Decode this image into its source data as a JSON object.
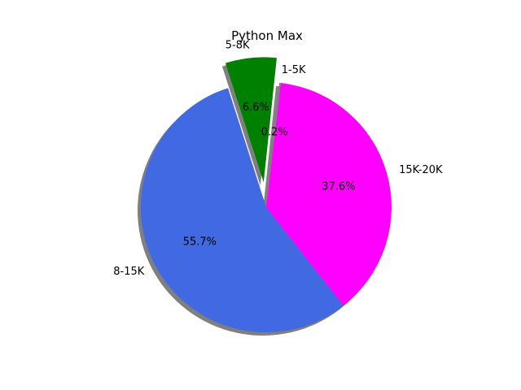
{
  "chart_data": {
    "type": "pie",
    "title": "Python Max",
    "shadow": true,
    "start_angle_deg": 84,
    "direction": "counterclockwise",
    "slices": [
      {
        "label": "5-8K",
        "percent": 6.6,
        "value": 6.6,
        "color": "#008000",
        "explode": 0.2,
        "pct_text": "6.6%"
      },
      {
        "label": "8-15K",
        "percent": 55.7,
        "value": 55.7,
        "color": "#4169e1",
        "explode": 0,
        "pct_text": "55.7%"
      },
      {
        "label": "15K-20K",
        "percent": 37.6,
        "value": 37.6,
        "color": "#ff00ff",
        "explode": 0,
        "pct_text": "37.6%"
      },
      {
        "label": "1-5K",
        "percent": 0.2,
        "value": 0.2,
        "color": "#808080",
        "explode": 0,
        "pct_text": "0.2%"
      }
    ]
  }
}
